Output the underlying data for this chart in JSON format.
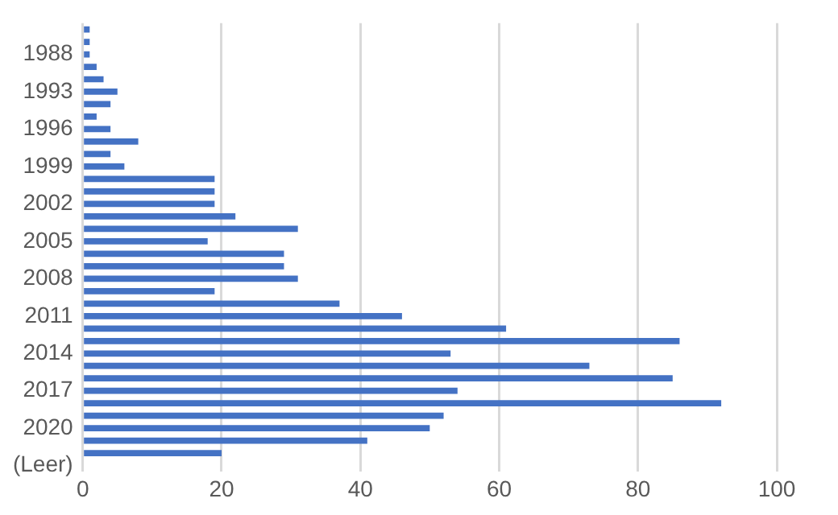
{
  "chart_data": {
    "type": "bar",
    "orientation": "horizontal",
    "categories": [
      null,
      null,
      "1988",
      null,
      null,
      "1993",
      null,
      null,
      "1996",
      null,
      null,
      "1999",
      null,
      null,
      "2002",
      null,
      null,
      "2005",
      null,
      null,
      "2008",
      null,
      null,
      "2011",
      null,
      null,
      "2014",
      null,
      null,
      "2017",
      null,
      null,
      "2020",
      null,
      null,
      "(Leer)"
    ],
    "values": [
      1,
      1,
      1,
      2,
      3,
      5,
      4,
      2,
      4,
      8,
      4,
      6,
      19,
      19,
      19,
      22,
      31,
      18,
      29,
      29,
      31,
      19,
      37,
      46,
      61,
      86,
      53,
      73,
      85,
      54,
      92,
      52,
      50,
      41,
      20,
      null
    ],
    "color": "#4472c4",
    "xlim": [
      0,
      100
    ],
    "xticks": [
      0,
      20,
      40,
      60,
      80,
      100
    ],
    "grid": "x"
  }
}
